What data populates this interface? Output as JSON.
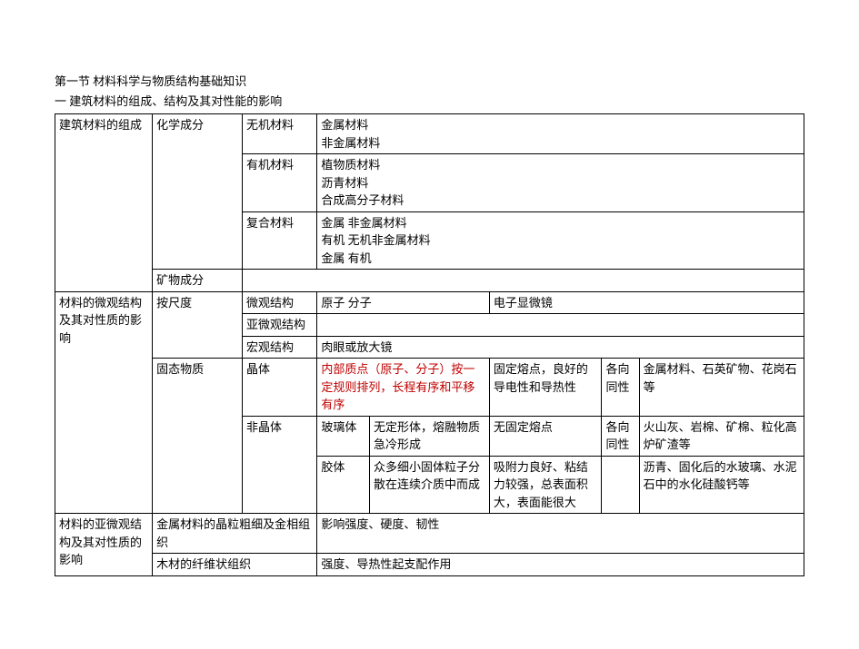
{
  "headings": {
    "h1": "第一节 材料科学与物质结构基础知识",
    "h2": "一 建筑材料的组成、结构及其对性能的影响"
  },
  "tbl": {
    "r0c0": "建筑材料的组成",
    "r0c1": "化学成分",
    "r0c2": "无机材料",
    "r0c3a": "金属材料",
    "r0c3b": "非金属材料",
    "r1c2": "有机材料",
    "r1c3a": "植物质材料",
    "r1c3b": "沥青材料",
    "r1c3c": "合成高分子材料",
    "r2c2": "复合材料",
    "r2c3a": "金属 非金属材料",
    "r2c3b": "有机 无机非金属材料",
    "r2c3c": "金属 有机",
    "r3c1": "矿物成分",
    "r4c0": "材料的微观结构及其对性质的影响",
    "r4c1": "按尺度",
    "r4c2": "微观结构",
    "r4c3": "原子 分子",
    "r4c4": "电子显微镜",
    "r5c2": "亚微观结构",
    "r6c2": "宏观结构",
    "r6c3": "肉眼或放大镜",
    "r7c1": "固态物质",
    "r7c2": "晶体",
    "r7c3": "内部质点（原子、分子）按一定规则排列，长程有序和平移有序",
    "r7c4": "固定熔点，良好的导电性和导热性",
    "r7c5": "各向同性",
    "r7c6": "金属材料、石英矿物、花岗石等",
    "r8c2": "非晶体",
    "r8c3a": "玻璃体",
    "r8c3b": "无定形体，熔融物质急冷形成",
    "r8c4": "无固定熔点",
    "r8c5": "各向同性",
    "r8c6": "火山灰、岩棉、矿棉、粒化高炉矿渣等",
    "r9c3a": "胶体",
    "r9c3b": "众多细小固体粒子分散在连续介质中而成",
    "r9c4": "吸附力良好、粘结力较强，总表面积大，表面能很大",
    "r9c6": "沥青、固化后的水玻璃、水泥石中的水化硅酸钙等",
    "r10c0": "材料的亚微观结构及其对性质的影响",
    "r10c1": "金属材料的晶粒粗细及金相组织",
    "r10c3": "影响强度、硬度、韧性",
    "r11c1": "木材的纤维状组织",
    "r11c3": "强度、导热性起支配作用"
  },
  "colors": {
    "text": "#000000",
    "border": "#000000",
    "background": "#ffffff",
    "highlight": "#c00000"
  }
}
